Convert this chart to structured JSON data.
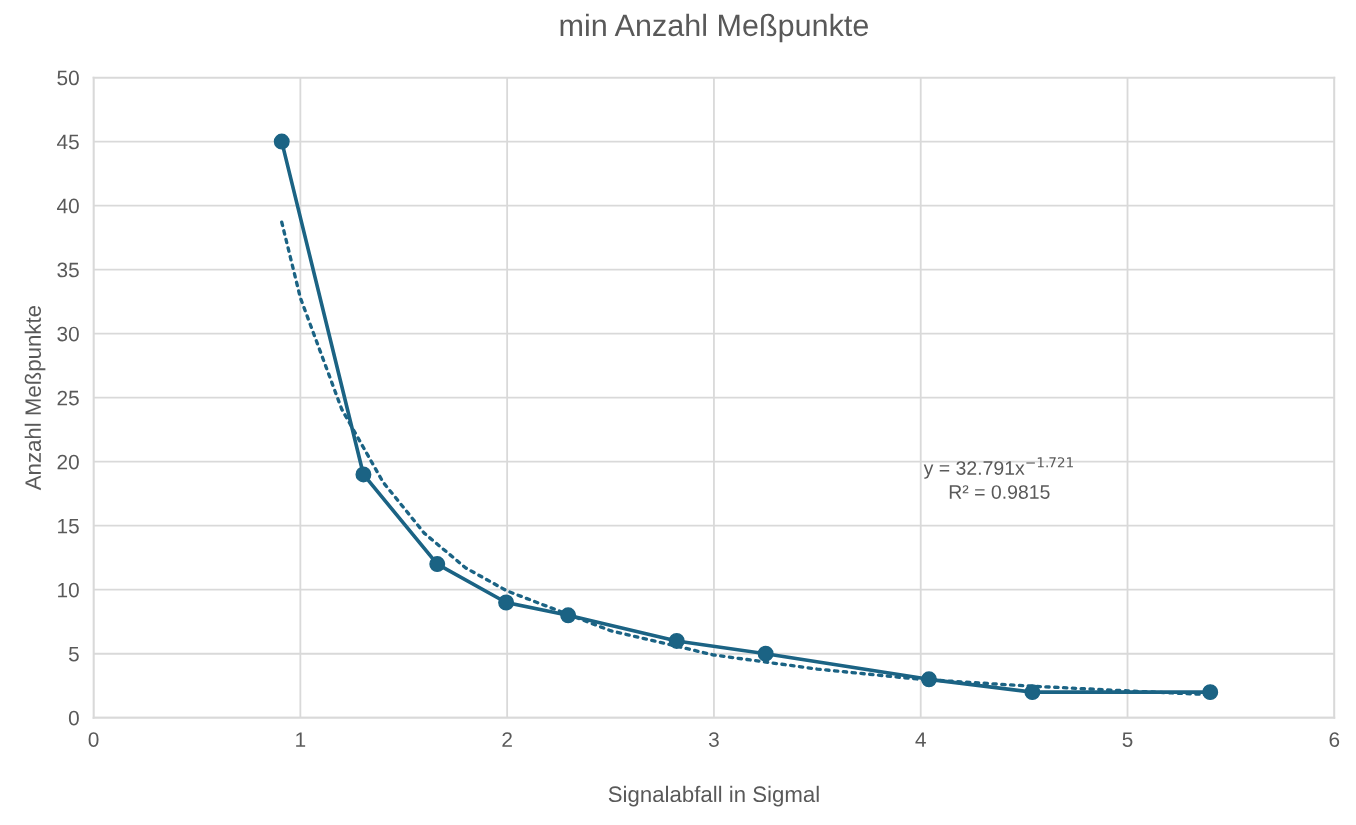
{
  "chart_data": {
    "type": "line",
    "title": "min Anzahl Meßpunkte",
    "xlabel": "Signalabfall in Sigmal",
    "ylabel": "Anzahl Meßpunkte",
    "xlim": [
      0,
      6
    ],
    "xticks": [
      0,
      1,
      2,
      3,
      4,
      5,
      6
    ],
    "ylim": [
      0,
      50
    ],
    "yticks": [
      0,
      5,
      10,
      15,
      20,
      25,
      30,
      35,
      40,
      45,
      50
    ],
    "grid": true,
    "marker": "circle",
    "line_style": "solid",
    "series": [
      {
        "color": "#1b6384",
        "x": [
          0.91,
          1.305,
          1.662,
          1.995,
          2.295,
          2.82,
          3.25,
          4.04,
          4.54,
          5.4
        ],
        "values": [
          45,
          19,
          12,
          9,
          8,
          6,
          5,
          3,
          2,
          2
        ]
      },
      {
        "type": "line",
        "color": "#1b6384",
        "marker": "none",
        "line_style": "dotted",
        "x": [
          0.91,
          1.0,
          1.2,
          1.4,
          1.6,
          1.8,
          2.0,
          2.5,
          3.0,
          3.5,
          4.0,
          4.5,
          5.0,
          5.4
        ],
        "values": [
          38.7,
          32.8,
          24.1,
          18.4,
          14.4,
          11.7,
          9.9,
          6.8,
          4.9,
          3.8,
          3.0,
          2.5,
          2.1,
          1.8
        ]
      }
    ],
    "annotations": [
      "y = 32.791x$^{−1.721}$",
      "R² = 0.9815"
    ]
  }
}
